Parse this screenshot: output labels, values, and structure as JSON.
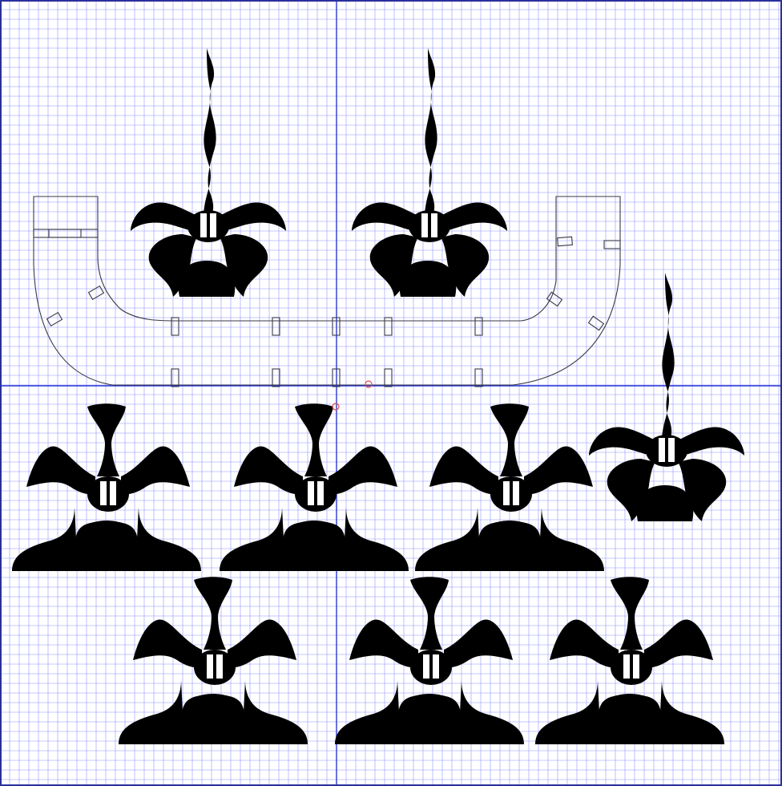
{
  "app": {
    "view": "cad-layout-sheet"
  },
  "canvas": {
    "background_color": "#ffffff",
    "grid": {
      "visible": true,
      "minor_color": "#8f95ff",
      "major_color": "#5159d8",
      "axis_color": "#2a36d6",
      "border_color": "#2a2f9c"
    },
    "stroke_color": "#3a3a4a",
    "marker_color": "#e24b4b"
  },
  "parts": {
    "tall_ornament_count": 3,
    "short_ornament_count": 6,
    "boat_base_count": 1
  }
}
